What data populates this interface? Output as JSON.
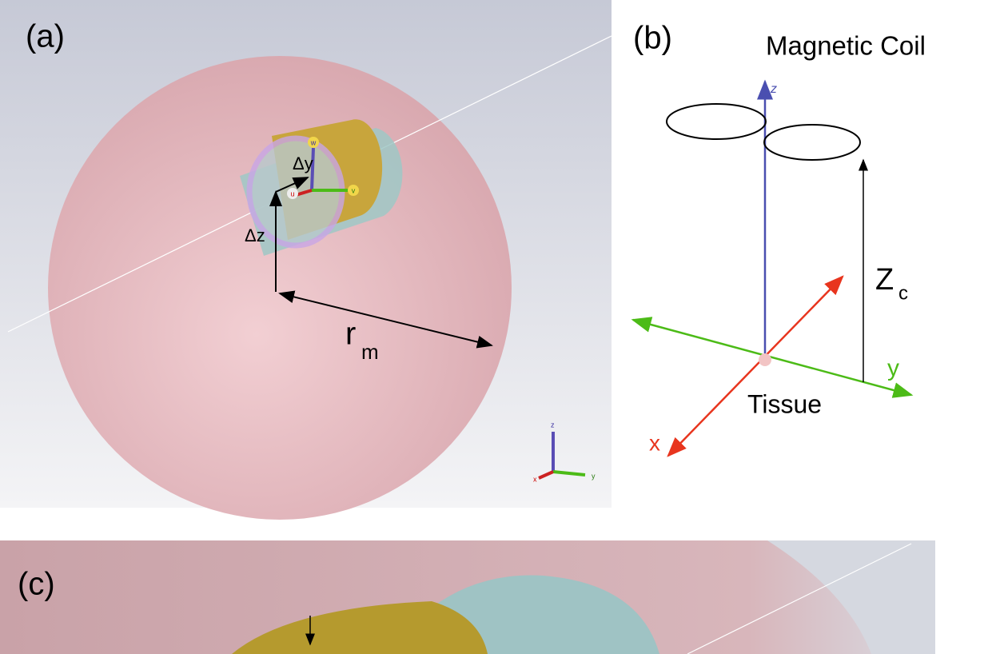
{
  "panels": [
    {
      "label": "(a)",
      "delta_y": "Δy",
      "delta_z": "Δz",
      "radius": "r",
      "radius_sub": "m",
      "gizmo": [
        "u",
        "v",
        "w"
      ],
      "triad": [
        "x",
        "y",
        "z"
      ]
    },
    {
      "label": "(b)",
      "title": "Magnetic Coil",
      "axes": [
        "x",
        "y",
        "z"
      ],
      "height": "Z",
      "height_sub": "c",
      "target": "Tissue"
    },
    {
      "label": "(c)"
    }
  ]
}
